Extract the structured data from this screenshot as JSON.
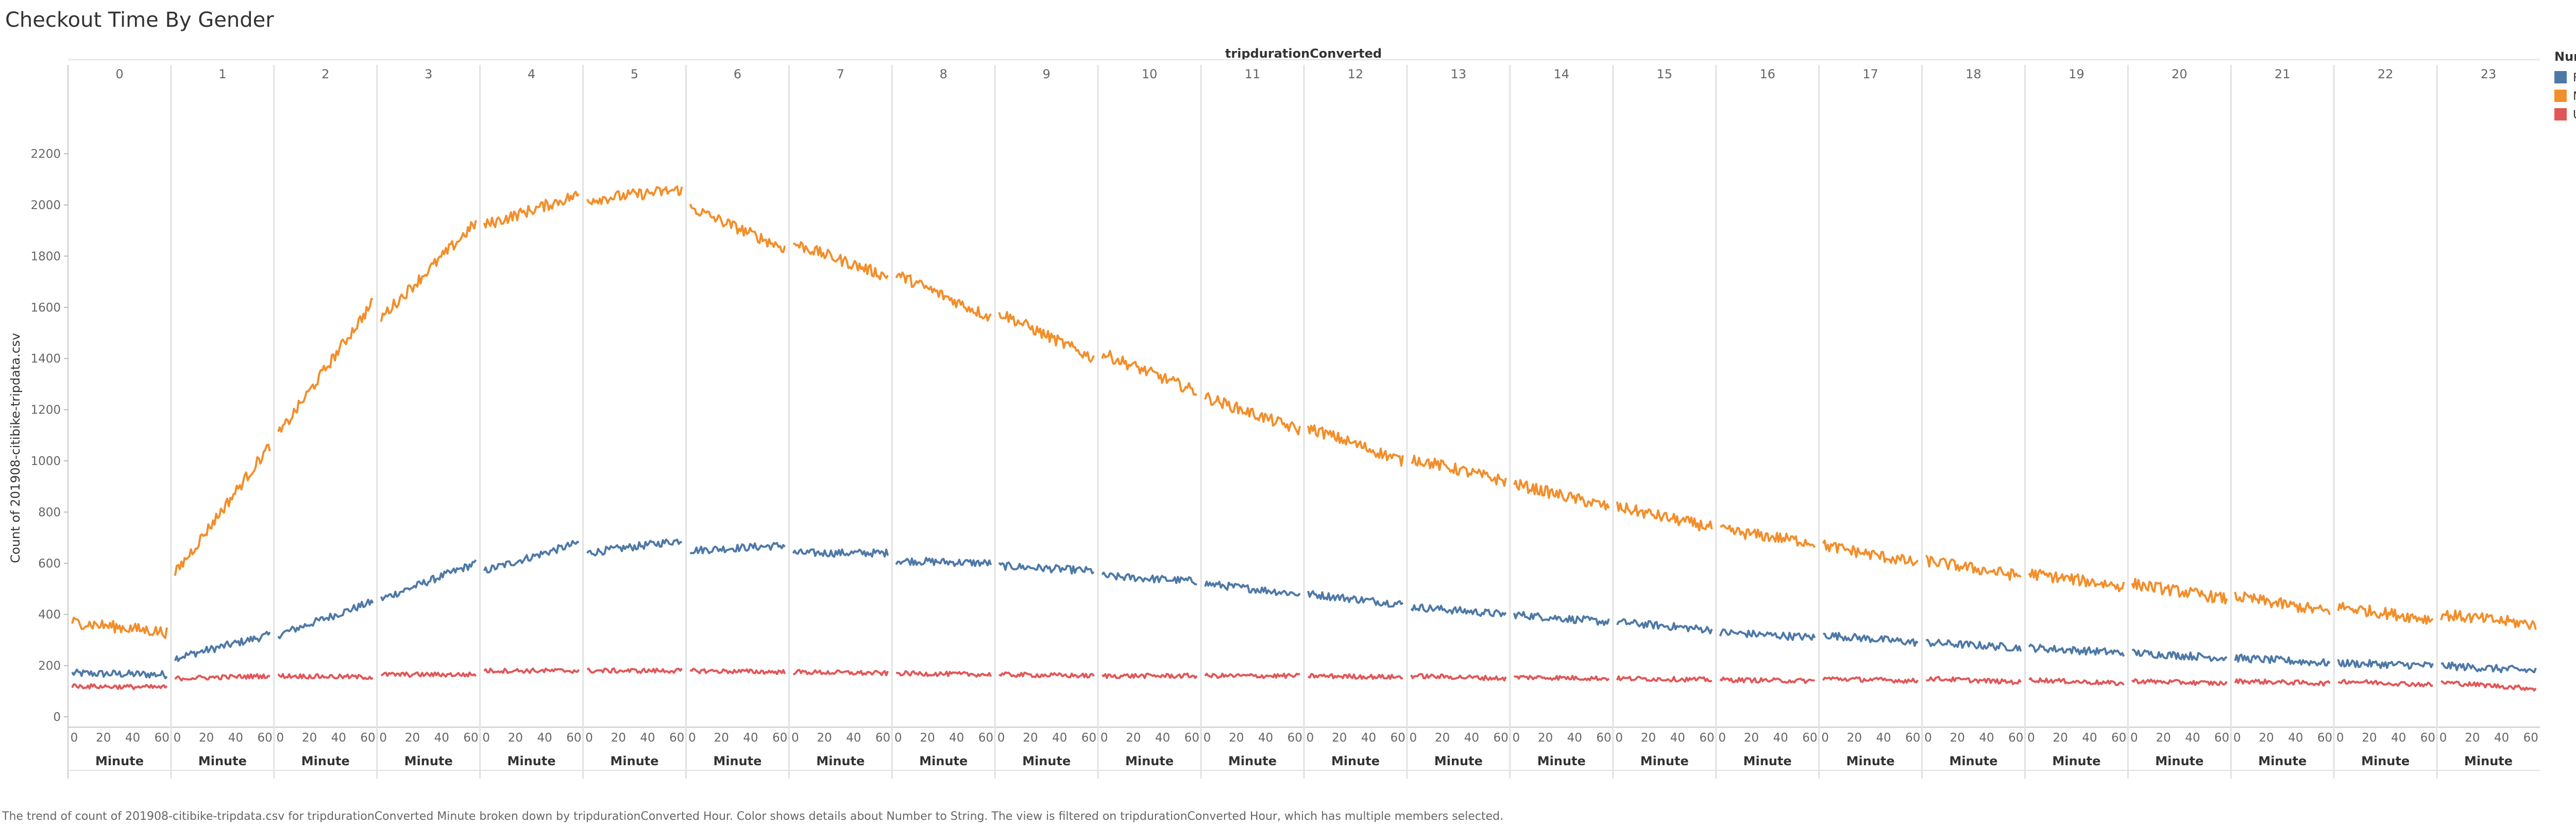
{
  "chart_data": {
    "type": "line",
    "title": "Checkout Time By Gender",
    "column_header": "tripdurationConverted",
    "ylabel": "Count of 201908-citibike-tripdata.csv",
    "xlabel": "Minute",
    "x_ticks": [
      "0",
      "20",
      "40",
      "60"
    ],
    "ylim": [
      0,
      2250
    ],
    "y_ticks": [
      0,
      200,
      400,
      600,
      800,
      1000,
      1200,
      1400,
      1600,
      1800,
      2000,
      2200
    ],
    "grid": false,
    "legend_position": "right",
    "legend_title": "Number to String",
    "panels": [
      "0",
      "1",
      "2",
      "3",
      "4",
      "5",
      "6",
      "7",
      "8",
      "9",
      "10",
      "11",
      "12",
      "13",
      "14",
      "15",
      "16",
      "17",
      "18",
      "19",
      "20",
      "21",
      "22",
      "23"
    ],
    "series": [
      {
        "name": "FEMALE",
        "color": "#4E79A7",
        "panel_start": [
          170,
          230,
          320,
          460,
          570,
          640,
          650,
          640,
          610,
          590,
          550,
          520,
          480,
          430,
          400,
          370,
          330,
          320,
          290,
          270,
          250,
          230,
          210,
          200
        ],
        "panel_end": [
          165,
          320,
          450,
          600,
          680,
          690,
          670,
          640,
          600,
          570,
          530,
          480,
          440,
          400,
          370,
          340,
          310,
          290,
          270,
          250,
          230,
          210,
          200,
          180
        ]
      },
      {
        "name": "MALE",
        "color": "#F28E2B",
        "panel_start": [
          370,
          560,
          1100,
          1560,
          1920,
          2020,
          1990,
          1850,
          1730,
          1580,
          1420,
          1250,
          1130,
          1010,
          910,
          820,
          730,
          670,
          610,
          560,
          520,
          470,
          430,
          400
        ],
        "panel_end": [
          330,
          1060,
          1620,
          1930,
          2040,
          2060,
          1830,
          1720,
          1560,
          1400,
          1270,
          1120,
          1000,
          920,
          820,
          740,
          680,
          600,
          550,
          510,
          460,
          410,
          380,
          360
        ]
      },
      {
        "name": "UNKNOWN",
        "color": "#E15759",
        "panel_start": [
          120,
          150,
          160,
          165,
          180,
          180,
          180,
          175,
          170,
          165,
          160,
          160,
          160,
          160,
          155,
          150,
          145,
          150,
          150,
          145,
          140,
          140,
          140,
          135
        ],
        "panel_end": [
          115,
          160,
          155,
          165,
          180,
          180,
          175,
          170,
          165,
          160,
          160,
          160,
          155,
          150,
          150,
          145,
          140,
          140,
          135,
          130,
          130,
          130,
          125,
          110
        ]
      }
    ]
  },
  "footer": "The trend of count of 201908-citibike-tripdata.csv for tripdurationConverted Minute broken down by tripdurationConverted Hour.  Color shows details about Number to String. The view is filtered on tripdurationConverted Hour, which has multiple members selected."
}
